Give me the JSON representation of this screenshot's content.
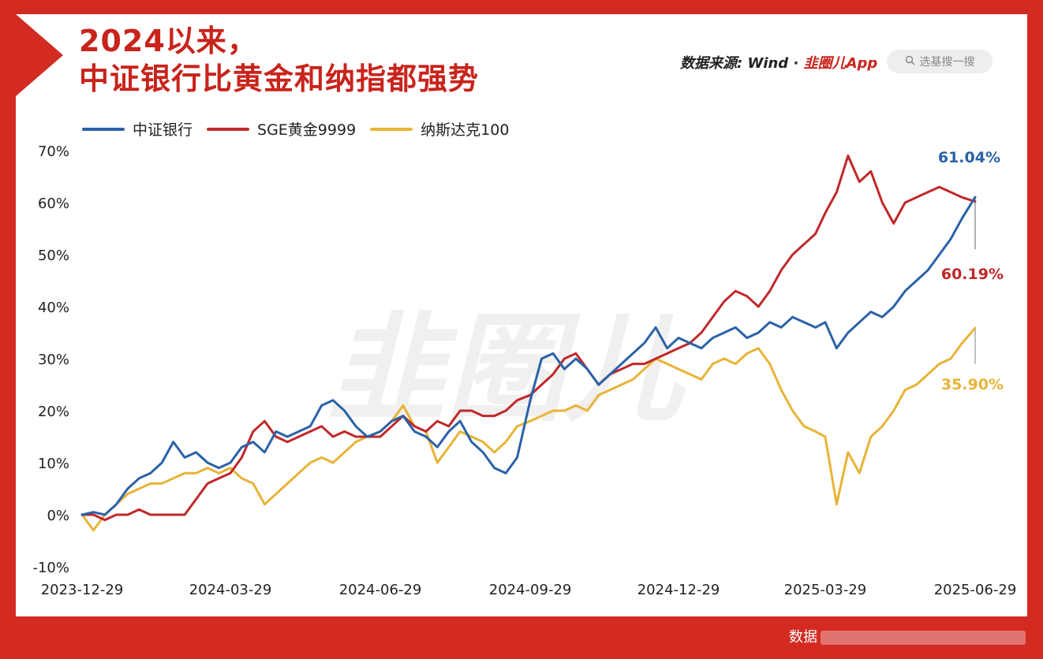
{
  "header": {
    "title_line1": "2024以来，",
    "title_line2": "中证银行比黄金和纳指都强势",
    "source_prefix": "数据来源: Wind ·",
    "source_brand": "韭圈儿App",
    "search_placeholder": "选基搜一搜"
  },
  "watermark": "韭圈儿",
  "footer": {
    "text": "数据"
  },
  "colors": {
    "blue": "#2a62a8",
    "red": "#c0282a",
    "gold": "#e8b437",
    "frame_red": "#d32a22"
  },
  "chart_data": {
    "type": "line",
    "title": "2024以来，中证银行比黄金和纳指都强势",
    "xlabel": "",
    "ylabel": "",
    "ylim": [
      -10,
      70
    ],
    "yticks": [
      "70%",
      "60%",
      "50%",
      "40%",
      "30%",
      "20%",
      "10%",
      "0%",
      "-10%"
    ],
    "xlim": [
      "2023-12-29",
      "2025-06-29"
    ],
    "xticks": [
      "2023-12-29",
      "2024-03-29",
      "2024-06-29",
      "2024-09-29",
      "2024-12-29",
      "2025-03-29",
      "2025-06-29"
    ],
    "series": [
      {
        "name": "中证银行",
        "color": "#2a62a8",
        "end_label": "61.04%",
        "points": [
          [
            "2023-12-29",
            0
          ],
          [
            "2024-01-05",
            0.5
          ],
          [
            "2024-01-12",
            0
          ],
          [
            "2024-01-19",
            2
          ],
          [
            "2024-01-26",
            5
          ],
          [
            "2024-02-02",
            7
          ],
          [
            "2024-02-09",
            8
          ],
          [
            "2024-02-16",
            10
          ],
          [
            "2024-02-23",
            14
          ],
          [
            "2024-03-01",
            11
          ],
          [
            "2024-03-08",
            12
          ],
          [
            "2024-03-15",
            10
          ],
          [
            "2024-03-22",
            9
          ],
          [
            "2024-03-29",
            10
          ],
          [
            "2024-04-05",
            13
          ],
          [
            "2024-04-12",
            14
          ],
          [
            "2024-04-19",
            12
          ],
          [
            "2024-04-26",
            16
          ],
          [
            "2024-05-03",
            15
          ],
          [
            "2024-05-10",
            16
          ],
          [
            "2024-05-17",
            17
          ],
          [
            "2024-05-24",
            21
          ],
          [
            "2024-05-31",
            22
          ],
          [
            "2024-06-07",
            20
          ],
          [
            "2024-06-14",
            17
          ],
          [
            "2024-06-21",
            15
          ],
          [
            "2024-06-29",
            16
          ],
          [
            "2024-07-06",
            18
          ],
          [
            "2024-07-13",
            19
          ],
          [
            "2024-07-20",
            16
          ],
          [
            "2024-07-27",
            15
          ],
          [
            "2024-08-03",
            13
          ],
          [
            "2024-08-10",
            16
          ],
          [
            "2024-08-17",
            18
          ],
          [
            "2024-08-24",
            14
          ],
          [
            "2024-08-31",
            12
          ],
          [
            "2024-09-07",
            9
          ],
          [
            "2024-09-14",
            8
          ],
          [
            "2024-09-21",
            11
          ],
          [
            "2024-09-29",
            22
          ],
          [
            "2024-10-06",
            30
          ],
          [
            "2024-10-13",
            31
          ],
          [
            "2024-10-20",
            28
          ],
          [
            "2024-10-27",
            30
          ],
          [
            "2024-11-03",
            28
          ],
          [
            "2024-11-10",
            25
          ],
          [
            "2024-11-17",
            27
          ],
          [
            "2024-11-24",
            29
          ],
          [
            "2024-12-01",
            31
          ],
          [
            "2024-12-08",
            33
          ],
          [
            "2024-12-15",
            36
          ],
          [
            "2024-12-22",
            32
          ],
          [
            "2024-12-29",
            34
          ],
          [
            "2025-01-05",
            33
          ],
          [
            "2025-01-12",
            32
          ],
          [
            "2025-01-19",
            34
          ],
          [
            "2025-01-26",
            35
          ],
          [
            "2025-02-02",
            36
          ],
          [
            "2025-02-09",
            34
          ],
          [
            "2025-02-16",
            35
          ],
          [
            "2025-02-23",
            37
          ],
          [
            "2025-03-02",
            36
          ],
          [
            "2025-03-09",
            38
          ],
          [
            "2025-03-16",
            37
          ],
          [
            "2025-03-23",
            36
          ],
          [
            "2025-03-29",
            37
          ],
          [
            "2025-04-05",
            32
          ],
          [
            "2025-04-12",
            35
          ],
          [
            "2025-04-19",
            37
          ],
          [
            "2025-04-26",
            39
          ],
          [
            "2025-05-03",
            38
          ],
          [
            "2025-05-10",
            40
          ],
          [
            "2025-05-17",
            43
          ],
          [
            "2025-05-24",
            45
          ],
          [
            "2025-05-31",
            47
          ],
          [
            "2025-06-07",
            50
          ],
          [
            "2025-06-14",
            53
          ],
          [
            "2025-06-21",
            57
          ],
          [
            "2025-06-29",
            61.04
          ]
        ]
      },
      {
        "name": "SGE黄金9999",
        "color": "#c0282a",
        "end_label": "60.19%",
        "points": [
          [
            "2023-12-29",
            0
          ],
          [
            "2024-01-05",
            0
          ],
          [
            "2024-01-12",
            -1
          ],
          [
            "2024-01-19",
            0
          ],
          [
            "2024-01-26",
            0
          ],
          [
            "2024-02-02",
            1
          ],
          [
            "2024-02-09",
            0
          ],
          [
            "2024-02-16",
            0
          ],
          [
            "2024-02-23",
            0
          ],
          [
            "2024-03-01",
            0
          ],
          [
            "2024-03-08",
            3
          ],
          [
            "2024-03-15",
            6
          ],
          [
            "2024-03-22",
            7
          ],
          [
            "2024-03-29",
            8
          ],
          [
            "2024-04-05",
            11
          ],
          [
            "2024-04-12",
            16
          ],
          [
            "2024-04-19",
            18
          ],
          [
            "2024-04-26",
            15
          ],
          [
            "2024-05-03",
            14
          ],
          [
            "2024-05-10",
            15
          ],
          [
            "2024-05-17",
            16
          ],
          [
            "2024-05-24",
            17
          ],
          [
            "2024-05-31",
            15
          ],
          [
            "2024-06-07",
            16
          ],
          [
            "2024-06-14",
            15
          ],
          [
            "2024-06-21",
            15
          ],
          [
            "2024-06-29",
            15
          ],
          [
            "2024-07-06",
            17
          ],
          [
            "2024-07-13",
            19
          ],
          [
            "2024-07-20",
            17
          ],
          [
            "2024-07-27",
            16
          ],
          [
            "2024-08-03",
            18
          ],
          [
            "2024-08-10",
            17
          ],
          [
            "2024-08-17",
            20
          ],
          [
            "2024-08-24",
            20
          ],
          [
            "2024-08-31",
            19
          ],
          [
            "2024-09-07",
            19
          ],
          [
            "2024-09-14",
            20
          ],
          [
            "2024-09-21",
            22
          ],
          [
            "2024-09-29",
            23
          ],
          [
            "2024-10-06",
            25
          ],
          [
            "2024-10-13",
            27
          ],
          [
            "2024-10-20",
            30
          ],
          [
            "2024-10-27",
            31
          ],
          [
            "2024-11-03",
            28
          ],
          [
            "2024-11-10",
            25
          ],
          [
            "2024-11-17",
            27
          ],
          [
            "2024-11-24",
            28
          ],
          [
            "2024-12-01",
            29
          ],
          [
            "2024-12-08",
            29
          ],
          [
            "2024-12-15",
            30
          ],
          [
            "2024-12-22",
            31
          ],
          [
            "2024-12-29",
            32
          ],
          [
            "2025-01-05",
            33
          ],
          [
            "2025-01-12",
            35
          ],
          [
            "2025-01-19",
            38
          ],
          [
            "2025-01-26",
            41
          ],
          [
            "2025-02-02",
            43
          ],
          [
            "2025-02-09",
            42
          ],
          [
            "2025-02-16",
            40
          ],
          [
            "2025-02-23",
            43
          ],
          [
            "2025-03-02",
            47
          ],
          [
            "2025-03-09",
            50
          ],
          [
            "2025-03-16",
            52
          ],
          [
            "2025-03-23",
            54
          ],
          [
            "2025-03-29",
            58
          ],
          [
            "2025-04-05",
            62
          ],
          [
            "2025-04-12",
            69
          ],
          [
            "2025-04-19",
            64
          ],
          [
            "2025-04-26",
            66
          ],
          [
            "2025-05-03",
            60
          ],
          [
            "2025-05-10",
            56
          ],
          [
            "2025-05-17",
            60
          ],
          [
            "2025-05-24",
            61
          ],
          [
            "2025-05-31",
            62
          ],
          [
            "2025-06-07",
            63
          ],
          [
            "2025-06-14",
            62
          ],
          [
            "2025-06-21",
            61
          ],
          [
            "2025-06-29",
            60.19
          ]
        ]
      },
      {
        "name": "纳斯达克100",
        "color": "#e8b437",
        "end_label": "35.90%",
        "points": [
          [
            "2023-12-29",
            0
          ],
          [
            "2024-01-05",
            -3
          ],
          [
            "2024-01-12",
            0
          ],
          [
            "2024-01-19",
            2
          ],
          [
            "2024-01-26",
            4
          ],
          [
            "2024-02-02",
            5
          ],
          [
            "2024-02-09",
            6
          ],
          [
            "2024-02-16",
            6
          ],
          [
            "2024-02-23",
            7
          ],
          [
            "2024-03-01",
            8
          ],
          [
            "2024-03-08",
            8
          ],
          [
            "2024-03-15",
            9
          ],
          [
            "2024-03-22",
            8
          ],
          [
            "2024-03-29",
            9
          ],
          [
            "2024-04-05",
            7
          ],
          [
            "2024-04-12",
            6
          ],
          [
            "2024-04-19",
            2
          ],
          [
            "2024-04-26",
            4
          ],
          [
            "2024-05-03",
            6
          ],
          [
            "2024-05-10",
            8
          ],
          [
            "2024-05-17",
            10
          ],
          [
            "2024-05-24",
            11
          ],
          [
            "2024-05-31",
            10
          ],
          [
            "2024-06-07",
            12
          ],
          [
            "2024-06-14",
            14
          ],
          [
            "2024-06-21",
            15
          ],
          [
            "2024-06-29",
            16
          ],
          [
            "2024-07-06",
            18
          ],
          [
            "2024-07-13",
            21
          ],
          [
            "2024-07-20",
            17
          ],
          [
            "2024-07-27",
            16
          ],
          [
            "2024-08-03",
            10
          ],
          [
            "2024-08-10",
            13
          ],
          [
            "2024-08-17",
            16
          ],
          [
            "2024-08-24",
            15
          ],
          [
            "2024-08-31",
            14
          ],
          [
            "2024-09-07",
            12
          ],
          [
            "2024-09-14",
            14
          ],
          [
            "2024-09-21",
            17
          ],
          [
            "2024-09-29",
            18
          ],
          [
            "2024-10-06",
            19
          ],
          [
            "2024-10-13",
            20
          ],
          [
            "2024-10-20",
            20
          ],
          [
            "2024-10-27",
            21
          ],
          [
            "2024-11-03",
            20
          ],
          [
            "2024-11-10",
            23
          ],
          [
            "2024-11-17",
            24
          ],
          [
            "2024-11-24",
            25
          ],
          [
            "2024-12-01",
            26
          ],
          [
            "2024-12-08",
            28
          ],
          [
            "2024-12-15",
            30
          ],
          [
            "2024-12-22",
            29
          ],
          [
            "2024-12-29",
            28
          ],
          [
            "2025-01-05",
            27
          ],
          [
            "2025-01-12",
            26
          ],
          [
            "2025-01-19",
            29
          ],
          [
            "2025-01-26",
            30
          ],
          [
            "2025-02-02",
            29
          ],
          [
            "2025-02-09",
            31
          ],
          [
            "2025-02-16",
            32
          ],
          [
            "2025-02-23",
            29
          ],
          [
            "2025-03-02",
            24
          ],
          [
            "2025-03-09",
            20
          ],
          [
            "2025-03-16",
            17
          ],
          [
            "2025-03-23",
            16
          ],
          [
            "2025-03-29",
            15
          ],
          [
            "2025-04-05",
            2
          ],
          [
            "2025-04-12",
            12
          ],
          [
            "2025-04-19",
            8
          ],
          [
            "2025-04-26",
            15
          ],
          [
            "2025-05-03",
            17
          ],
          [
            "2025-05-10",
            20
          ],
          [
            "2025-05-17",
            24
          ],
          [
            "2025-05-24",
            25
          ],
          [
            "2025-05-31",
            27
          ],
          [
            "2025-06-07",
            29
          ],
          [
            "2025-06-14",
            30
          ],
          [
            "2025-06-21",
            33
          ],
          [
            "2025-06-29",
            35.9
          ]
        ]
      }
    ]
  }
}
